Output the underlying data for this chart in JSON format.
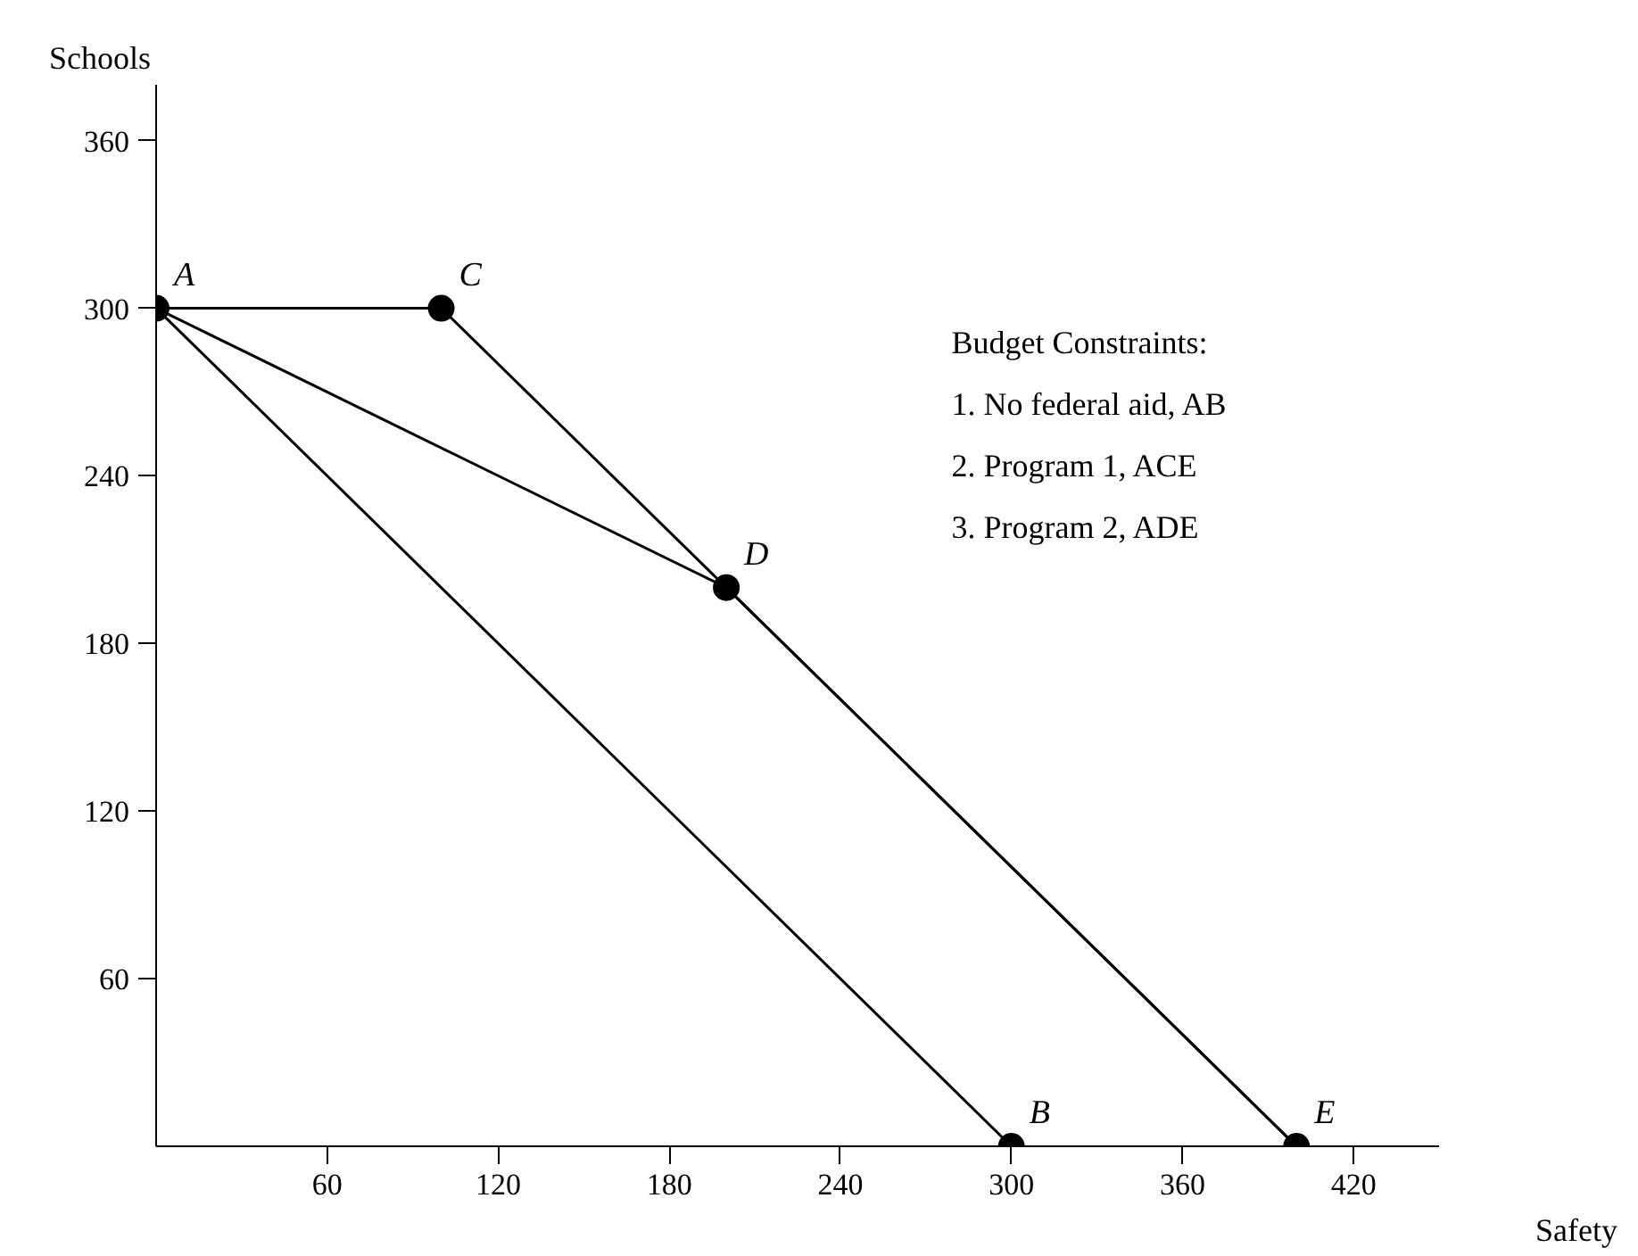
{
  "chart_data": {
    "type": "line",
    "xlabel": "Safety",
    "ylabel": "Schools",
    "xlim": [
      0,
      450
    ],
    "ylim": [
      0,
      380
    ],
    "xticks": [
      60,
      120,
      180,
      240,
      300,
      360,
      420
    ],
    "yticks": [
      60,
      120,
      180,
      240,
      300,
      360
    ],
    "grid": false,
    "line_style": "solid",
    "series": [
      {
        "color": "#000000",
        "x": [
          0,
          300
        ],
        "values": [
          300,
          0
        ],
        "marker": "none"
      },
      {
        "color": "#000000",
        "x": [
          0,
          100,
          400
        ],
        "values": [
          300,
          300,
          0
        ],
        "marker": "none"
      },
      {
        "color": "#000000",
        "x": [
          0,
          200,
          400
        ],
        "values": [
          300,
          200,
          0
        ],
        "marker": "none"
      },
      {
        "type": "scatter",
        "color": "#000000",
        "x": [
          0,
          100,
          200,
          300,
          400
        ],
        "values": [
          300,
          300,
          200,
          0,
          0
        ],
        "marker": "circle"
      }
    ],
    "annotations": [
      {
        "text": "A",
        "x": 0,
        "y": 300
      },
      {
        "text": "C",
        "x": 100,
        "y": 300
      },
      {
        "text": "D",
        "x": 200,
        "y": 200
      },
      {
        "text": "B",
        "x": 300,
        "y": 0
      },
      {
        "text": "E",
        "x": 400,
        "y": 0
      },
      "Budget Constraints:",
      "1. No federal aid, AB",
      "2. Program 1, ACE",
      "3. Program 2, ADE"
    ]
  }
}
